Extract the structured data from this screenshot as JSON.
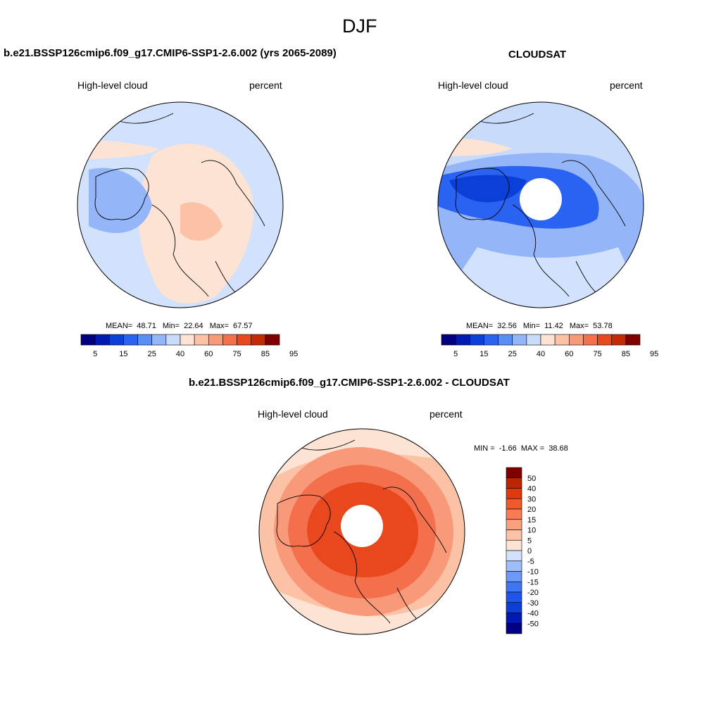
{
  "page": {
    "title": "DJF"
  },
  "panels": [
    {
      "title": "b.e21.BSSP126cmip6.f09_g17.CMIP6-SSP1-2.6.002 (yrs 2065-2089)",
      "left_label": "High-level cloud",
      "right_label": "percent",
      "stats": {
        "mean_label": "MEAN=",
        "mean": "48.71",
        "min_label": "Min=",
        "min": "22.64",
        "max_label": "Max=",
        "max": "67.57"
      },
      "has_pole_hole": false
    },
    {
      "title": "CLOUDSAT",
      "left_label": "High-level cloud",
      "right_label": "percent",
      "stats": {
        "mean_label": "MEAN=",
        "mean": "32.56",
        "min_label": "Min=",
        "min": "11.42",
        "max_label": "Max=",
        "max": "53.78"
      },
      "has_pole_hole": true
    },
    {
      "title": "b.e21.BSSP126cmip6.f09_g17.CMIP6-SSP1-2.6.002 - CLOUDSAT",
      "left_label": "High-level cloud",
      "right_label": "percent",
      "stats": {
        "min_label": "MIN =",
        "min": "-1.66",
        "max_label": "MAX =",
        "max": "38.68"
      },
      "has_pole_hole": true
    }
  ],
  "colorbar_abs": {
    "colors": [
      "#000080",
      "#0019b0",
      "#0a3fd8",
      "#2a62f2",
      "#5b8ef5",
      "#94b5f8",
      "#c9dbfb",
      "#fde3d3",
      "#fbc2a6",
      "#f8997a",
      "#f46f4c",
      "#e9471e",
      "#c42a08",
      "#800000"
    ],
    "labels": [
      "5",
      "15",
      "25",
      "40",
      "60",
      "75",
      "85",
      "95"
    ]
  },
  "colorbar_diff": {
    "colors": [
      "#000080",
      "#0019b0",
      "#0a3fd8",
      "#1f55ee",
      "#3f74f3",
      "#6c98f6",
      "#9fbdf9",
      "#d2e2fc",
      "#fde3d3",
      "#fbc2a6",
      "#f9a07f",
      "#f57c55",
      "#ee5a2a",
      "#e03a0c",
      "#bb2500",
      "#800000"
    ],
    "labels": [
      "50",
      "40",
      "30",
      "20",
      "15",
      "10",
      "5",
      "0",
      "-5",
      "-10",
      "-15",
      "-20",
      "-30",
      "-40",
      "-50"
    ]
  }
}
